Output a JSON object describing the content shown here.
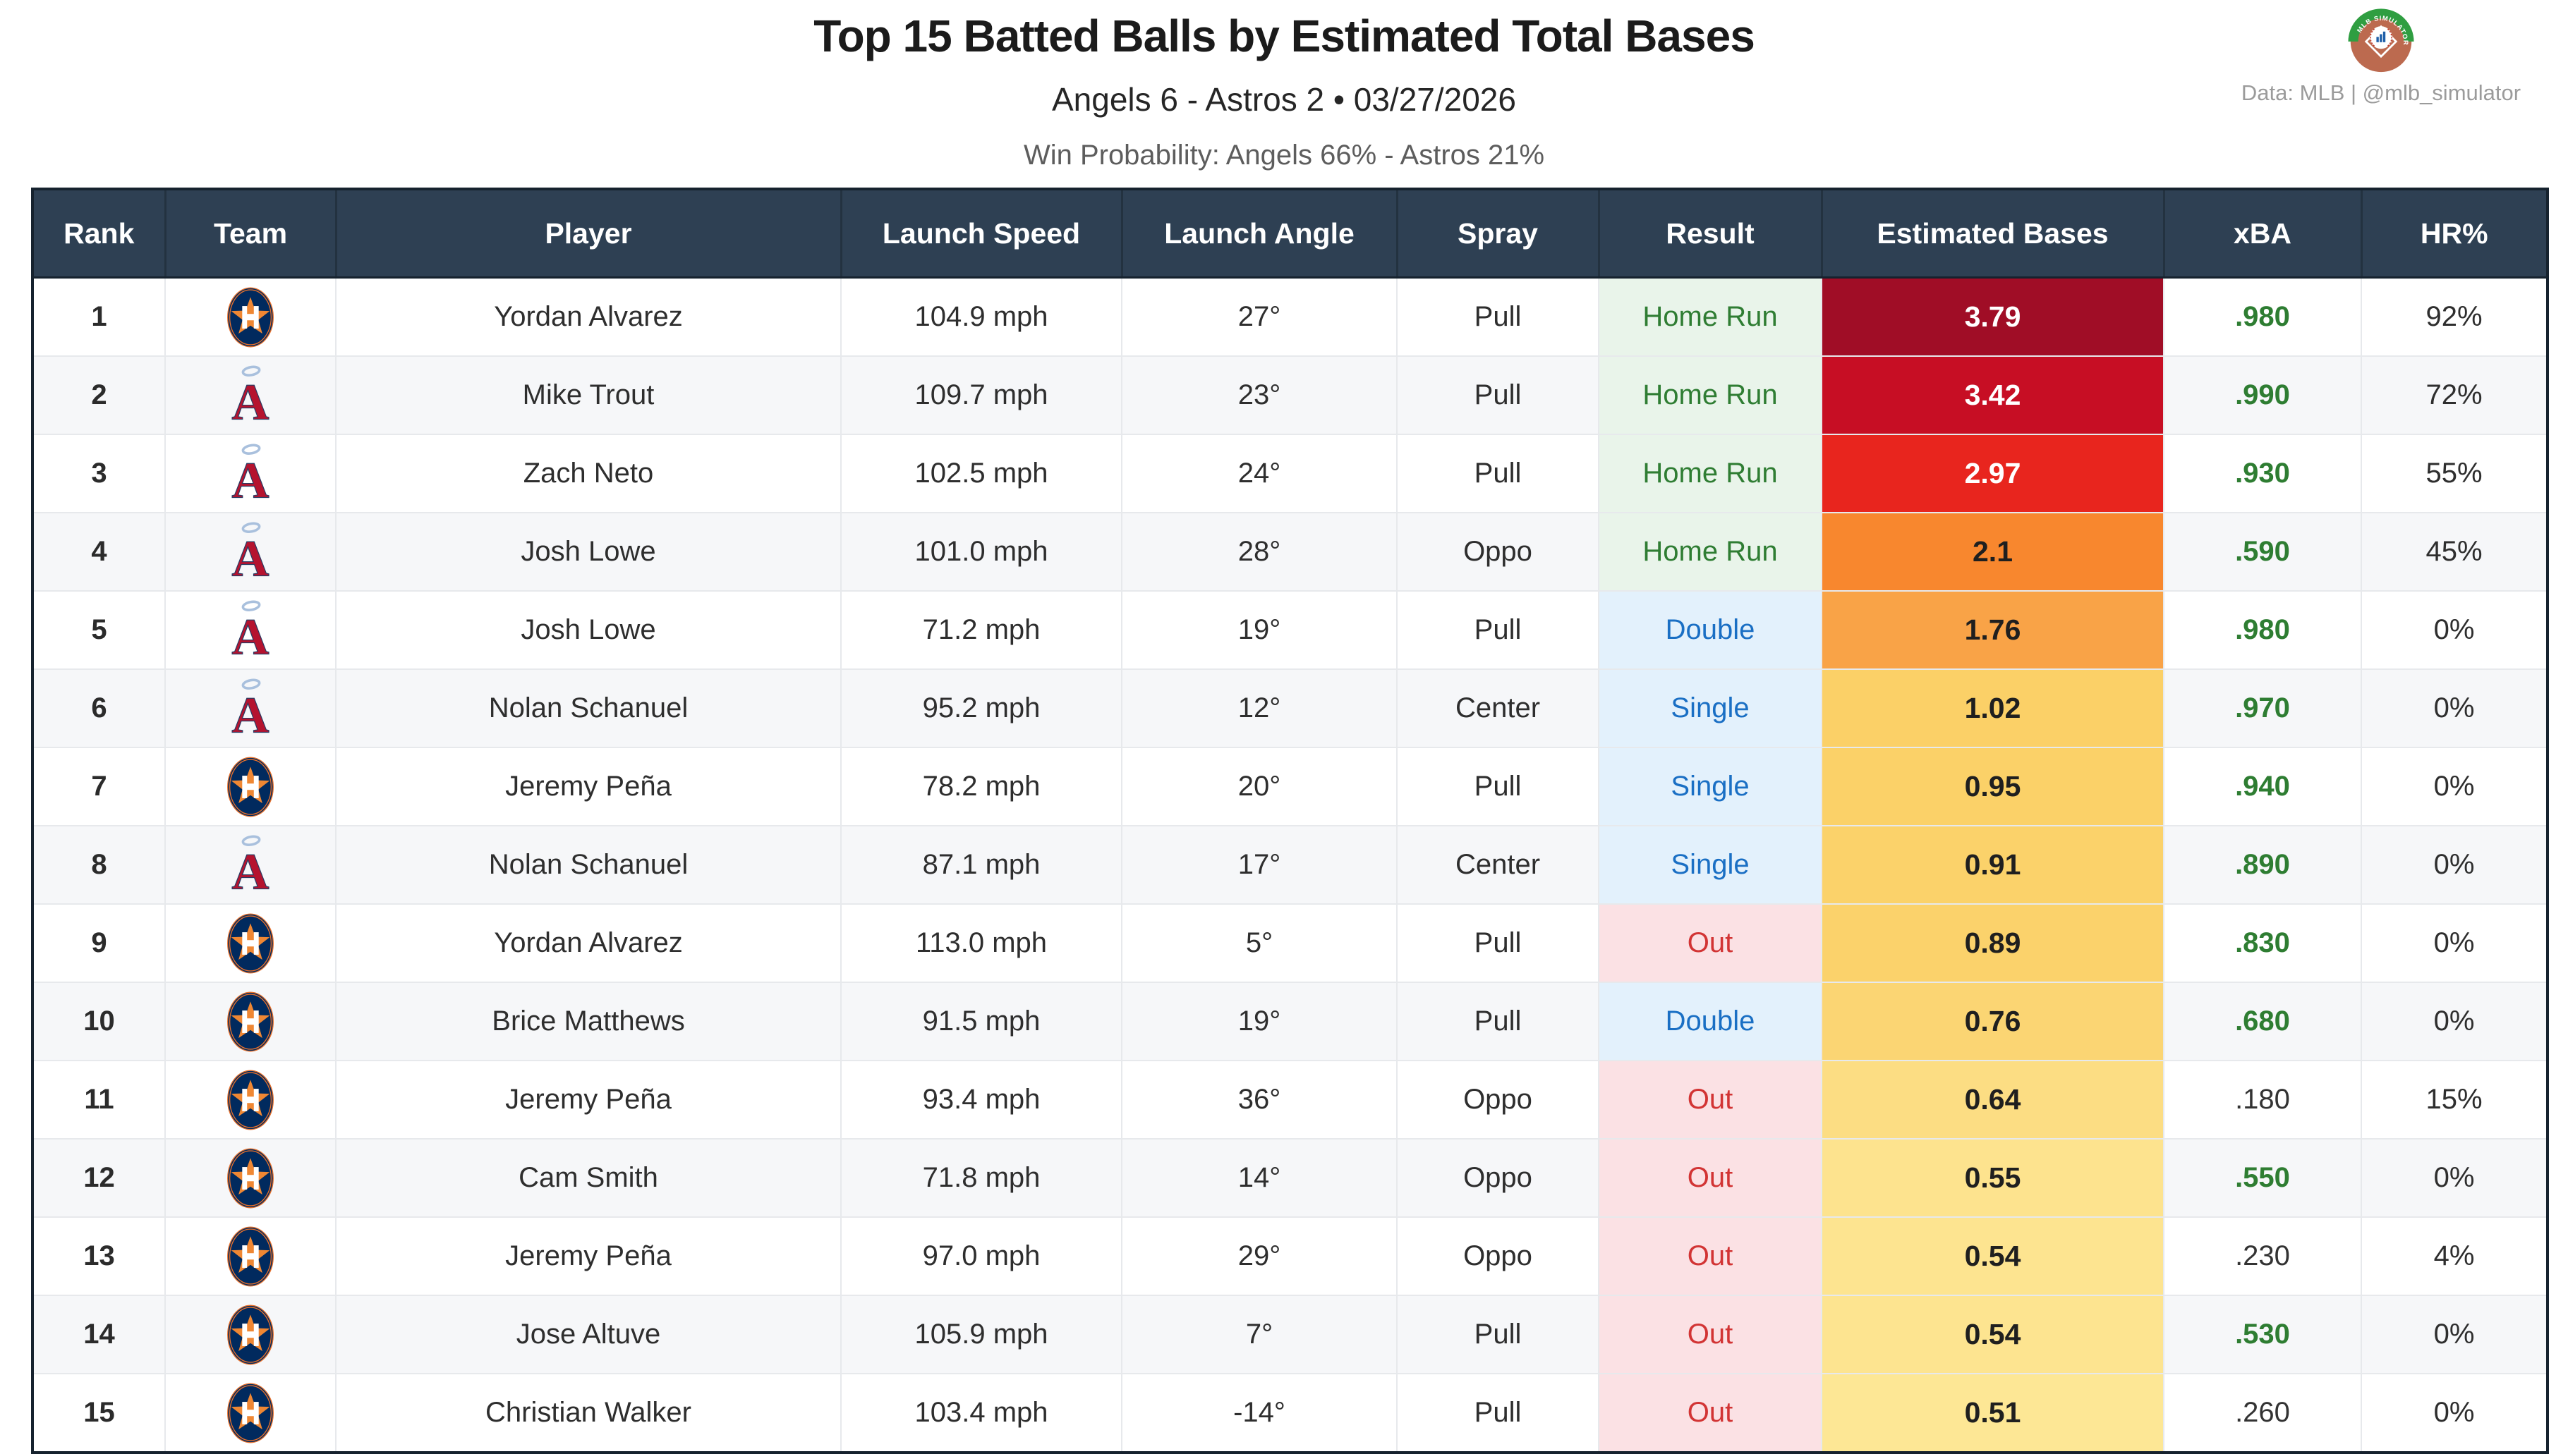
{
  "page": {
    "title": "Top 15 Batted Balls by Estimated Total Bases",
    "subtitle": "Angels 6 - Astros 2  •  03/27/2026",
    "win_probability": "Win Probability: Angels 66% - Astros 21%",
    "credit": "Data: MLB  |  @mlb_simulator",
    "logo_arc_text": "MLB SIMULATOR"
  },
  "colors": {
    "header_bg": "#2e4053",
    "header_text": "#ffffff",
    "xba_good": "#2e7d32",
    "xba_normal": "#333333",
    "result": {
      "Home Run": {
        "text": "#2f7d33",
        "bg": "#e9f4ea"
      },
      "Double": {
        "text": "#1a6fc4",
        "bg": "#e3f1fc"
      },
      "Single": {
        "text": "#1a6fc4",
        "bg": "#e3f1fc"
      },
      "Out": {
        "text": "#d23434",
        "bg": "#fbe1e4"
      }
    }
  },
  "table": {
    "columns": [
      "Rank",
      "Team",
      "Player",
      "Launch Speed",
      "Launch Angle",
      "Spray",
      "Result",
      "Estimated Bases",
      "xBA",
      "HR%"
    ],
    "rows": [
      {
        "rank": "1",
        "team": "astros",
        "player": "Yordan Alvarez",
        "speed": "104.9 mph",
        "angle": "27°",
        "spray": "Pull",
        "result": "Home Run",
        "bases": "3.79",
        "bases_bg": "#a00d26",
        "bases_text": "light",
        "xba": ".980",
        "xba_good": true,
        "hr": "92%"
      },
      {
        "rank": "2",
        "team": "angels",
        "player": "Mike Trout",
        "speed": "109.7 mph",
        "angle": "23°",
        "spray": "Pull",
        "result": "Home Run",
        "bases": "3.42",
        "bases_bg": "#c70e24",
        "bases_text": "light",
        "xba": ".990",
        "xba_good": true,
        "hr": "72%"
      },
      {
        "rank": "3",
        "team": "angels",
        "player": "Zach Neto",
        "speed": "102.5 mph",
        "angle": "24°",
        "spray": "Pull",
        "result": "Home Run",
        "bases": "2.97",
        "bases_bg": "#e8251e",
        "bases_text": "light",
        "xba": ".930",
        "xba_good": true,
        "hr": "55%"
      },
      {
        "rank": "4",
        "team": "angels",
        "player": "Josh Lowe",
        "speed": "101.0 mph",
        "angle": "28°",
        "spray": "Oppo",
        "result": "Home Run",
        "bases": "2.1",
        "bases_bg": "#f8872e",
        "bases_text": "dark",
        "xba": ".590",
        "xba_good": true,
        "hr": "45%"
      },
      {
        "rank": "5",
        "team": "angels",
        "player": "Josh Lowe",
        "speed": "71.2 mph",
        "angle": "19°",
        "spray": "Pull",
        "result": "Double",
        "bases": "1.76",
        "bases_bg": "#f9a347",
        "bases_text": "dark",
        "xba": ".980",
        "xba_good": true,
        "hr": "0%"
      },
      {
        "rank": "6",
        "team": "angels",
        "player": "Nolan Schanuel",
        "speed": "95.2 mph",
        "angle": "12°",
        "spray": "Center",
        "result": "Single",
        "bases": "1.02",
        "bases_bg": "#fbd067",
        "bases_text": "dark",
        "xba": ".970",
        "xba_good": true,
        "hr": "0%"
      },
      {
        "rank": "7",
        "team": "astros",
        "player": "Jeremy Peña",
        "speed": "78.2 mph",
        "angle": "20°",
        "spray": "Pull",
        "result": "Single",
        "bases": "0.95",
        "bases_bg": "#fbd168",
        "bases_text": "dark",
        "xba": ".940",
        "xba_good": true,
        "hr": "0%"
      },
      {
        "rank": "8",
        "team": "angels",
        "player": "Nolan Schanuel",
        "speed": "87.1 mph",
        "angle": "17°",
        "spray": "Center",
        "result": "Single",
        "bases": "0.91",
        "bases_bg": "#fbd26a",
        "bases_text": "dark",
        "xba": ".890",
        "xba_good": true,
        "hr": "0%"
      },
      {
        "rank": "9",
        "team": "astros",
        "player": "Yordan Alvarez",
        "speed": "113.0 mph",
        "angle": "5°",
        "spray": "Pull",
        "result": "Out",
        "bases": "0.89",
        "bases_bg": "#fbd26b",
        "bases_text": "dark",
        "xba": ".830",
        "xba_good": true,
        "hr": "0%"
      },
      {
        "rank": "10",
        "team": "astros",
        "player": "Brice Matthews",
        "speed": "91.5 mph",
        "angle": "19°",
        "spray": "Pull",
        "result": "Double",
        "bases": "0.76",
        "bases_bg": "#fbd573",
        "bases_text": "dark",
        "xba": ".680",
        "xba_good": true,
        "hr": "0%"
      },
      {
        "rank": "11",
        "team": "astros",
        "player": "Jeremy Peña",
        "speed": "93.4 mph",
        "angle": "36°",
        "spray": "Oppo",
        "result": "Out",
        "bases": "0.64",
        "bases_bg": "#fcdd83",
        "bases_text": "dark",
        "xba": ".180",
        "xba_good": false,
        "hr": "15%"
      },
      {
        "rank": "12",
        "team": "astros",
        "player": "Cam Smith",
        "speed": "71.8 mph",
        "angle": "14°",
        "spray": "Oppo",
        "result": "Out",
        "bases": "0.55",
        "bases_bg": "#fde38e",
        "bases_text": "dark",
        "xba": ".550",
        "xba_good": true,
        "hr": "0%"
      },
      {
        "rank": "13",
        "team": "astros",
        "player": "Jeremy Peña",
        "speed": "97.0 mph",
        "angle": "29°",
        "spray": "Oppo",
        "result": "Out",
        "bases": "0.54",
        "bases_bg": "#fde490",
        "bases_text": "dark",
        "xba": ".230",
        "xba_good": false,
        "hr": "4%"
      },
      {
        "rank": "14",
        "team": "astros",
        "player": "Jose Altuve",
        "speed": "105.9 mph",
        "angle": "7°",
        "spray": "Pull",
        "result": "Out",
        "bases": "0.54",
        "bases_bg": "#fde490",
        "bases_text": "dark",
        "xba": ".530",
        "xba_good": true,
        "hr": "0%"
      },
      {
        "rank": "15",
        "team": "astros",
        "player": "Christian Walker",
        "speed": "103.4 mph",
        "angle": "-14°",
        "spray": "Pull",
        "result": "Out",
        "bases": "0.51",
        "bases_bg": "#fde795",
        "bases_text": "dark",
        "xba": ".260",
        "xba_good": false,
        "hr": "0%"
      }
    ]
  },
  "chart_data": {
    "type": "table",
    "title": "Top 15 Batted Balls by Estimated Total Bases",
    "subtitle": "Angels 6 - Astros 2 • 03/27/2026",
    "annotation": "Win Probability: Angels 66% - Astros 21%",
    "columns": [
      "Rank",
      "Team",
      "Player",
      "Launch Speed (mph)",
      "Launch Angle (deg)",
      "Spray",
      "Result",
      "Estimated Bases",
      "xBA",
      "HR%"
    ],
    "rows": [
      [
        1,
        "Astros",
        "Yordan Alvarez",
        104.9,
        27,
        "Pull",
        "Home Run",
        3.79,
        0.98,
        92
      ],
      [
        2,
        "Angels",
        "Mike Trout",
        109.7,
        23,
        "Pull",
        "Home Run",
        3.42,
        0.99,
        72
      ],
      [
        3,
        "Angels",
        "Zach Neto",
        102.5,
        24,
        "Pull",
        "Home Run",
        2.97,
        0.93,
        55
      ],
      [
        4,
        "Angels",
        "Josh Lowe",
        101.0,
        28,
        "Oppo",
        "Home Run",
        2.1,
        0.59,
        45
      ],
      [
        5,
        "Angels",
        "Josh Lowe",
        71.2,
        19,
        "Pull",
        "Double",
        1.76,
        0.98,
        0
      ],
      [
        6,
        "Angels",
        "Nolan Schanuel",
        95.2,
        12,
        "Center",
        "Single",
        1.02,
        0.97,
        0
      ],
      [
        7,
        "Astros",
        "Jeremy Peña",
        78.2,
        20,
        "Pull",
        "Single",
        0.95,
        0.94,
        0
      ],
      [
        8,
        "Angels",
        "Nolan Schanuel",
        87.1,
        17,
        "Center",
        "Single",
        0.91,
        0.89,
        0
      ],
      [
        9,
        "Astros",
        "Yordan Alvarez",
        113.0,
        5,
        "Pull",
        "Out",
        0.89,
        0.83,
        0
      ],
      [
        10,
        "Astros",
        "Brice Matthews",
        91.5,
        19,
        "Pull",
        "Double",
        0.76,
        0.68,
        0
      ],
      [
        11,
        "Astros",
        "Jeremy Peña",
        93.4,
        36,
        "Oppo",
        "Out",
        0.64,
        0.18,
        15
      ],
      [
        12,
        "Astros",
        "Cam Smith",
        71.8,
        14,
        "Oppo",
        "Out",
        0.55,
        0.55,
        0
      ],
      [
        13,
        "Astros",
        "Jeremy Peña",
        97.0,
        29,
        "Oppo",
        "Out",
        0.54,
        0.23,
        4
      ],
      [
        14,
        "Astros",
        "Jose Altuve",
        105.9,
        7,
        "Pull",
        "Out",
        0.54,
        0.53,
        0
      ],
      [
        15,
        "Astros",
        "Christian Walker",
        103.4,
        -14,
        "Pull",
        "Out",
        0.51,
        0.26,
        0
      ]
    ]
  }
}
